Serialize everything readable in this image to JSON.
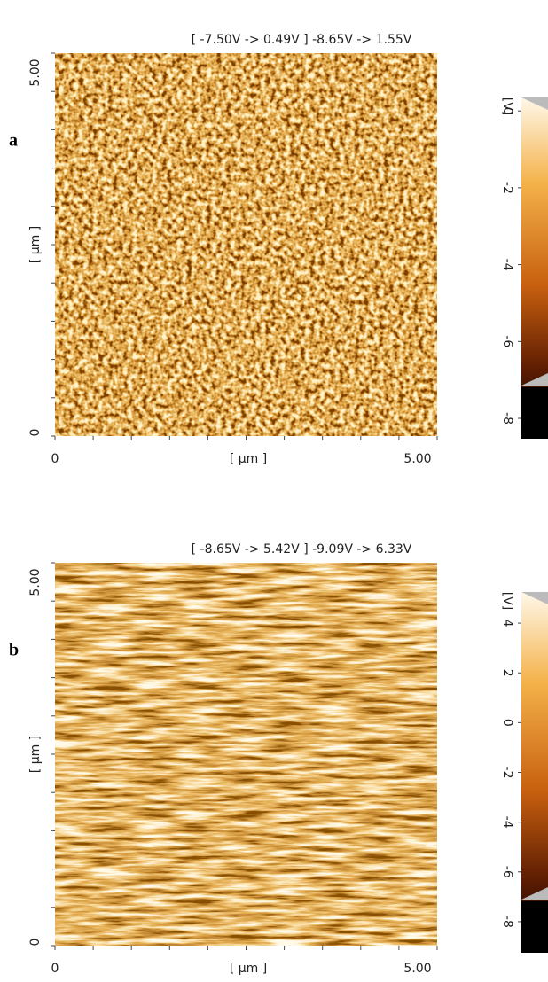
{
  "panels": [
    {
      "label": "a",
      "range": "[ -7.50V  -> 0.49V ] -8.65V  -> 1.55V",
      "x_ticks": [
        "0",
        "5.00"
      ],
      "x_label": "[ µm ]",
      "y_ticks": [
        "0",
        "5.00"
      ],
      "y_label": "[ µm ]",
      "colorbar": {
        "unit": "[V]",
        "vlim": [
          -8.53,
          0.35
        ],
        "ticks": [
          0,
          -2,
          -4,
          -6,
          -8
        ]
      }
    },
    {
      "label": "b",
      "range": "[ -8.65V  -> 5.42V ] -9.09V  -> 6.33V",
      "x_ticks": [
        "0",
        "5.00"
      ],
      "x_label": "[ µm ]",
      "y_ticks": [
        "0",
        "5.00"
      ],
      "y_label": "[ µm ]",
      "colorbar": {
        "unit": "[V]",
        "vlim": [
          -9.25,
          5.25
        ],
        "ticks": [
          4,
          2,
          0,
          -2,
          -4,
          -6,
          -8
        ]
      }
    }
  ]
}
